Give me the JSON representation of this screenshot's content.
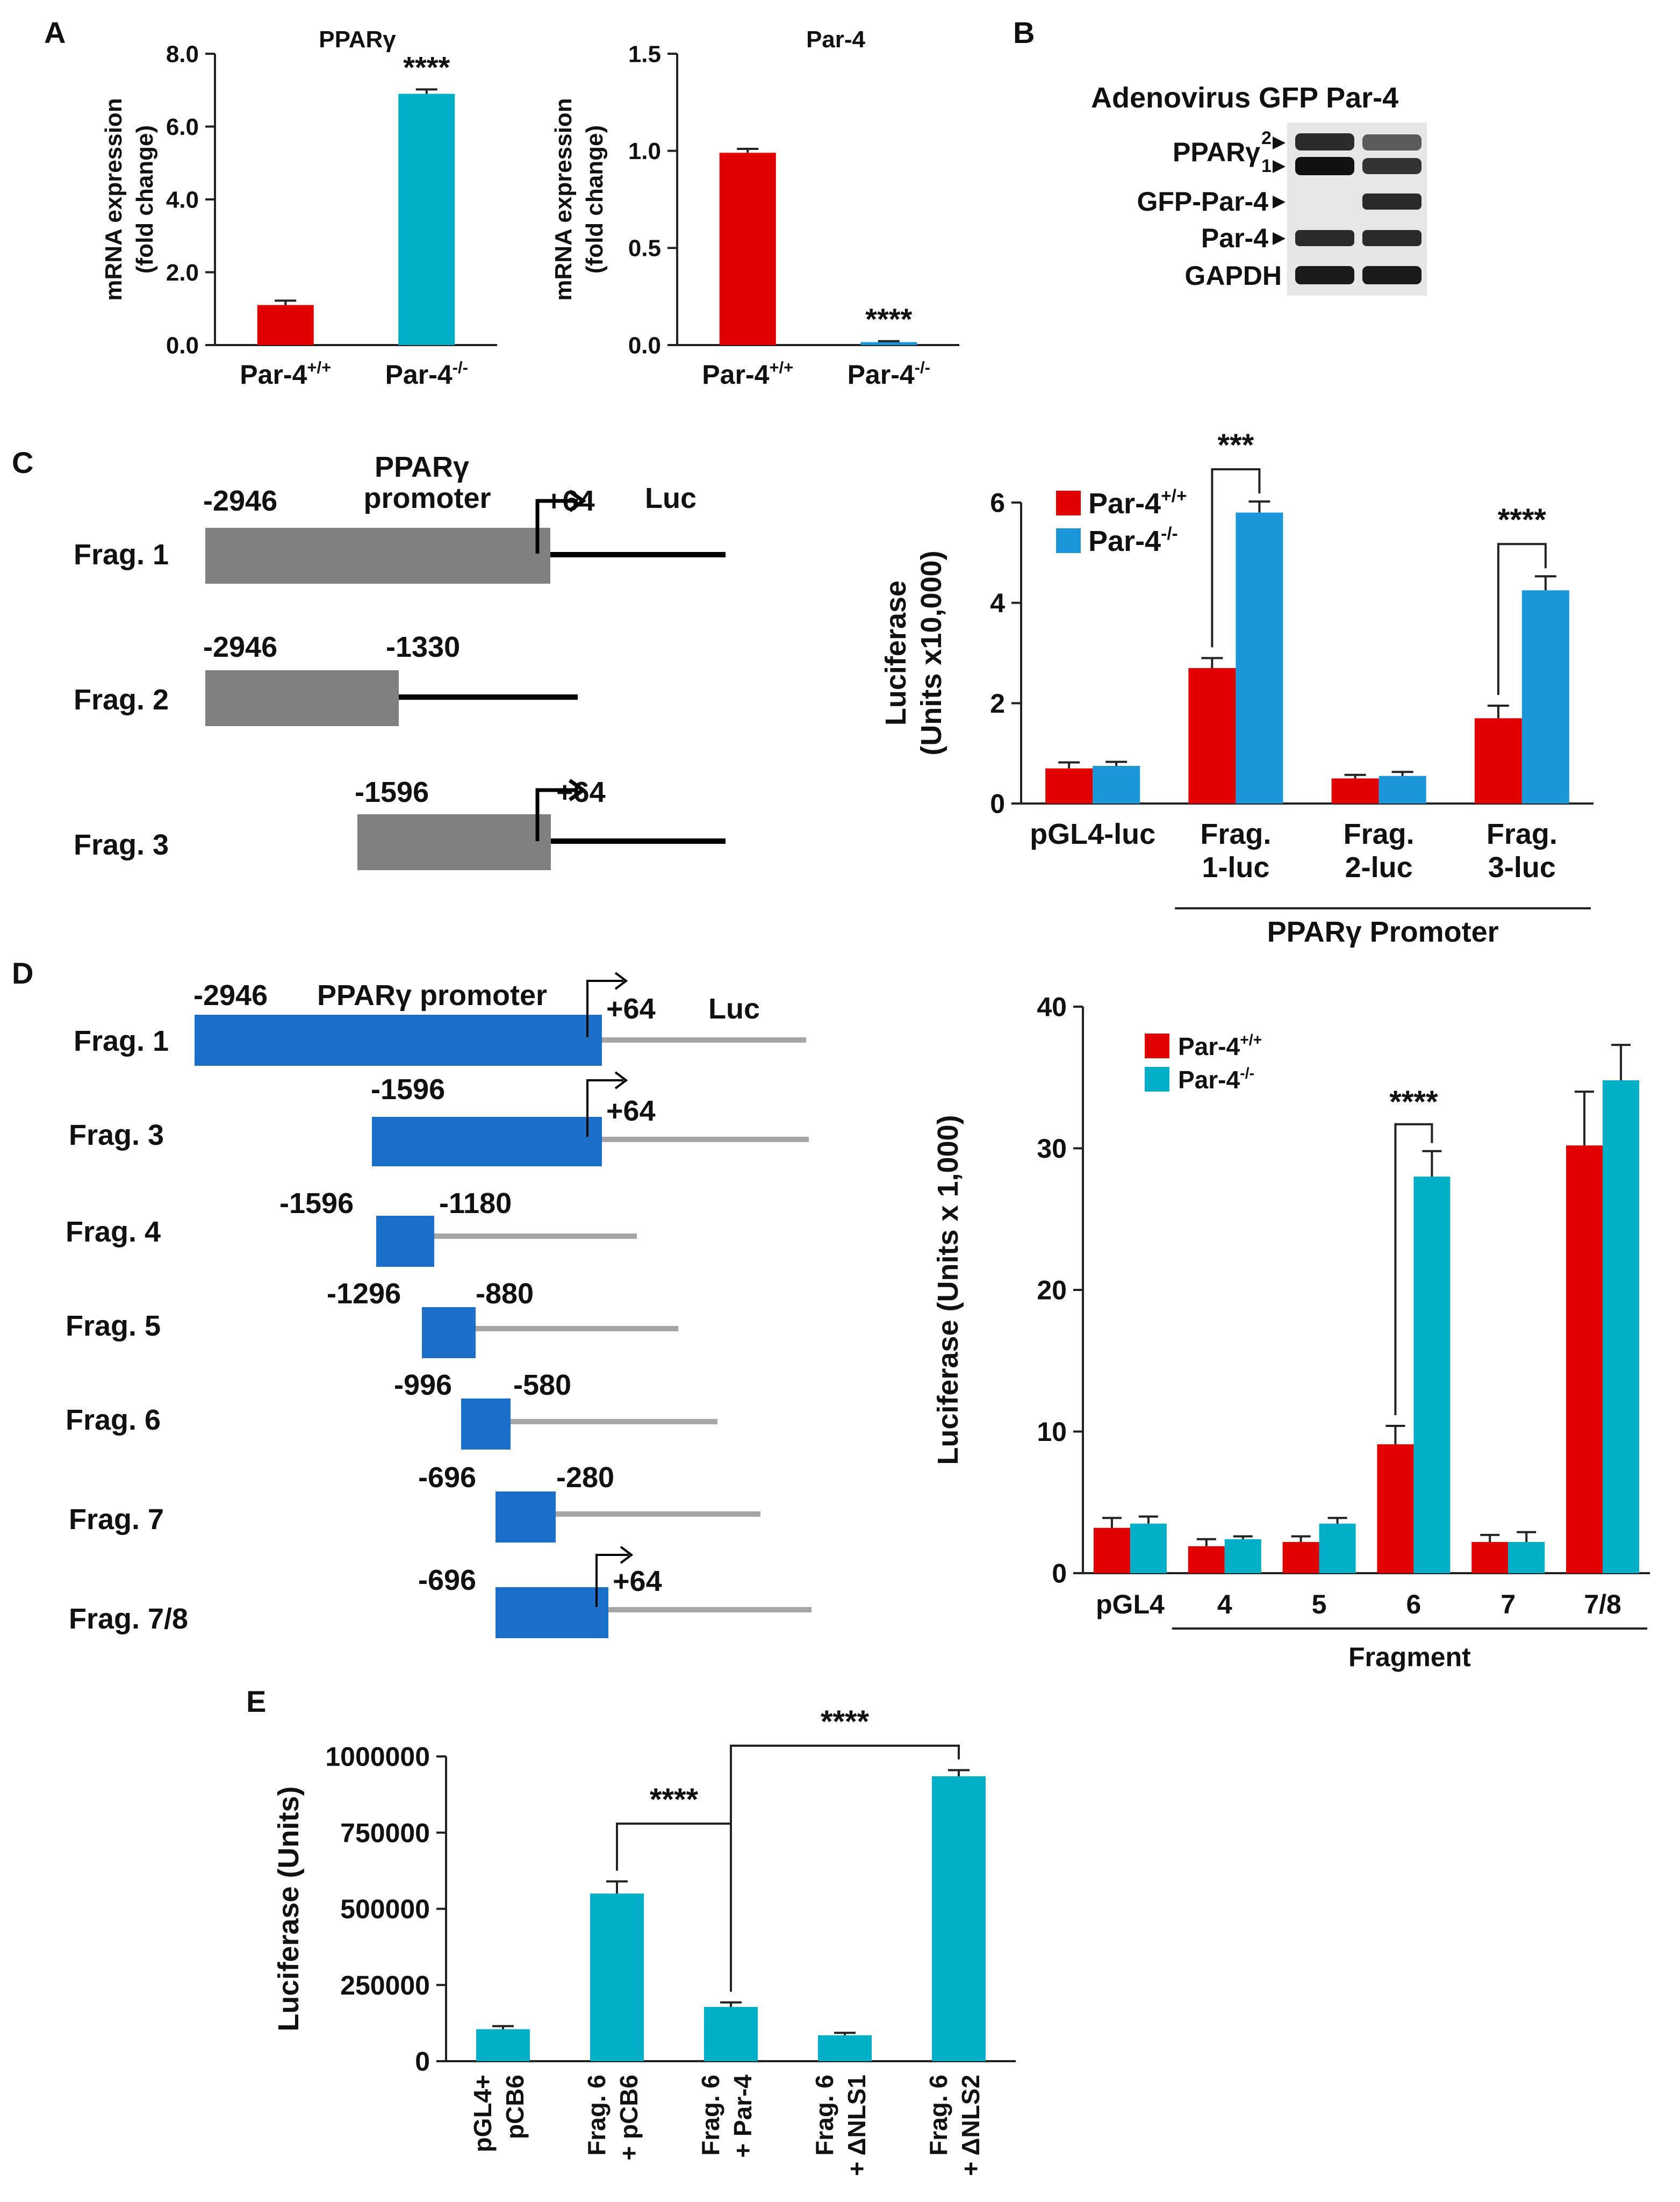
{
  "colors": {
    "red": "#e00000",
    "teal": "#00aec5",
    "blue": "#1b96d8",
    "gray": "#808080",
    "dblue": "#1c6fc8",
    "lgray": "#a6a6a6"
  },
  "panels": {
    "A": "A",
    "B": "B",
    "C": "C",
    "D": "D",
    "E": "E"
  },
  "chart_data": [
    {
      "id": "A1",
      "type": "bar",
      "title": "PPARγ",
      "ylabel_lines": [
        "mRNA expression",
        "(fold change)"
      ],
      "ylim": [
        0,
        8
      ],
      "yticks": [
        "0.0",
        "2.0",
        "4.0",
        "6.0",
        "8.0"
      ],
      "categories": [
        {
          "base": "Par-4",
          "sup": "+/+"
        },
        {
          "base": "Par-4",
          "sup": "-/-"
        }
      ],
      "values": [
        1.1,
        6.9
      ],
      "errors": [
        0.12,
        0.12
      ],
      "annotations": [
        {
          "bar": 1,
          "text": "****"
        }
      ]
    },
    {
      "id": "A2",
      "type": "bar",
      "title": "Par-4",
      "ylabel_lines": [
        "mRNA expression",
        "(fold change)"
      ],
      "ylim": [
        0,
        1.5
      ],
      "yticks": [
        "0.0",
        "0.5",
        "1.0",
        "1.5"
      ],
      "categories": [
        {
          "base": "Par-4",
          "sup": "+/+"
        },
        {
          "base": "Par-4",
          "sup": "-/-"
        }
      ],
      "values": [
        0.99,
        0.015
      ],
      "errors": [
        0.02,
        0.005
      ],
      "annotations": [
        {
          "bar": 1,
          "text": "****"
        }
      ]
    },
    {
      "id": "C",
      "type": "bar",
      "ylabel_lines": [
        "Luciferase",
        "(Units x10,000)"
      ],
      "ylim": [
        0,
        6
      ],
      "yticks": [
        "0",
        "2",
        "4",
        "6"
      ],
      "categories": [
        [
          "pGL4-luc"
        ],
        [
          "Frag.",
          "1-luc"
        ],
        [
          "Frag.",
          "2-luc"
        ],
        [
          "Frag.",
          "3-luc"
        ]
      ],
      "group_label": "PPARγ Promoter",
      "series": [
        {
          "name": {
            "base": "Par-4",
            "sup": "+/+"
          },
          "values": [
            0.7,
            2.7,
            0.5,
            1.7
          ],
          "errors": [
            0.12,
            0.2,
            0.07,
            0.25
          ]
        },
        {
          "name": {
            "base": "Par-4",
            "sup": "-/-"
          },
          "values": [
            0.75,
            5.8,
            0.55,
            4.25
          ],
          "errors": [
            0.08,
            0.22,
            0.08,
            0.28
          ]
        }
      ],
      "significance": [
        {
          "category": 1,
          "text": "***"
        },
        {
          "category": 3,
          "text": "****"
        }
      ]
    },
    {
      "id": "D",
      "type": "bar",
      "ylabel_lines": [
        "Luciferase (Units x 1,000)"
      ],
      "ylim": [
        0,
        40
      ],
      "yticks": [
        "0",
        "10",
        "20",
        "30",
        "40"
      ],
      "categories": [
        "pGL4",
        "4",
        "5",
        "6",
        "7",
        "7/8"
      ],
      "xlabel": "Fragment",
      "series": [
        {
          "name": {
            "base": "Par-4",
            "sup": "+/+"
          },
          "values": [
            3.2,
            1.9,
            2.2,
            9.1,
            2.2,
            30.2
          ],
          "errors": [
            0.7,
            0.5,
            0.4,
            1.3,
            0.5,
            3.8
          ]
        },
        {
          "name": {
            "base": "Par-4",
            "sup": "-/-"
          },
          "values": [
            3.5,
            2.4,
            3.5,
            28.0,
            2.2,
            34.8
          ],
          "errors": [
            0.5,
            0.2,
            0.4,
            1.8,
            0.7,
            2.5
          ]
        }
      ],
      "significance": [
        {
          "category": 3,
          "text": "****"
        }
      ]
    },
    {
      "id": "E",
      "type": "bar",
      "ylabel_lines": [
        "Luciferase (Units)"
      ],
      "ylim": [
        0,
        1000000
      ],
      "yticks": [
        "0",
        "250000",
        "500000",
        "750000",
        "1000000"
      ],
      "categories": [
        [
          "pGL4+",
          "pCB6"
        ],
        [
          "Frag. 6",
          "+ pCB6"
        ],
        [
          "Frag. 6",
          "+ Par-4"
        ],
        [
          "Frag. 6",
          "+ ΔNLS1"
        ],
        [
          "Frag. 6",
          "+ ΔNLS2"
        ]
      ],
      "values": [
        105000,
        550000,
        178000,
        85000,
        935000
      ],
      "errors": [
        10000,
        40000,
        15000,
        8000,
        20000
      ],
      "significance": [
        {
          "from": 1,
          "to": 2,
          "text": "****"
        },
        {
          "from": 2,
          "to": 4,
          "text": "****"
        }
      ]
    }
  ],
  "blot": {
    "header": "Adenovirus GFP Par-4",
    "rows": [
      {
        "base": "PPARγ",
        "marks": [
          "2",
          "1"
        ]
      },
      {
        "base": "GFP-Par-4"
      },
      {
        "base": "Par-4"
      },
      {
        "base": "GAPDH"
      }
    ]
  },
  "diagramC": {
    "title_lines": [
      "PPARγ",
      "promoter"
    ],
    "luc": "Luc",
    "rows": [
      {
        "label": "Frag. 1",
        "left": "-2946",
        "right": "+64"
      },
      {
        "label": "Frag. 2",
        "left": "-2946",
        "right": "-1330"
      },
      {
        "label": "Frag. 3",
        "left": "-1596",
        "right": "+64"
      }
    ]
  },
  "diagramD": {
    "title": "PPARγ promoter",
    "luc": "Luc",
    "rows": [
      {
        "label": "Frag. 1",
        "left": "-2946",
        "right": "+64"
      },
      {
        "label": "Frag. 3",
        "left": "-1596",
        "right": "+64"
      },
      {
        "label": "Frag. 4",
        "left": "-1596",
        "right": "-1180"
      },
      {
        "label": "Frag. 5",
        "left": "-1296",
        "right": "-880"
      },
      {
        "label": "Frag. 6",
        "left": "-996",
        "right": "-580"
      },
      {
        "label": "Frag. 7",
        "left": "-696",
        "right": "-280"
      },
      {
        "label": "Frag. 7/8",
        "left": "-696",
        "right": "+64"
      }
    ]
  }
}
